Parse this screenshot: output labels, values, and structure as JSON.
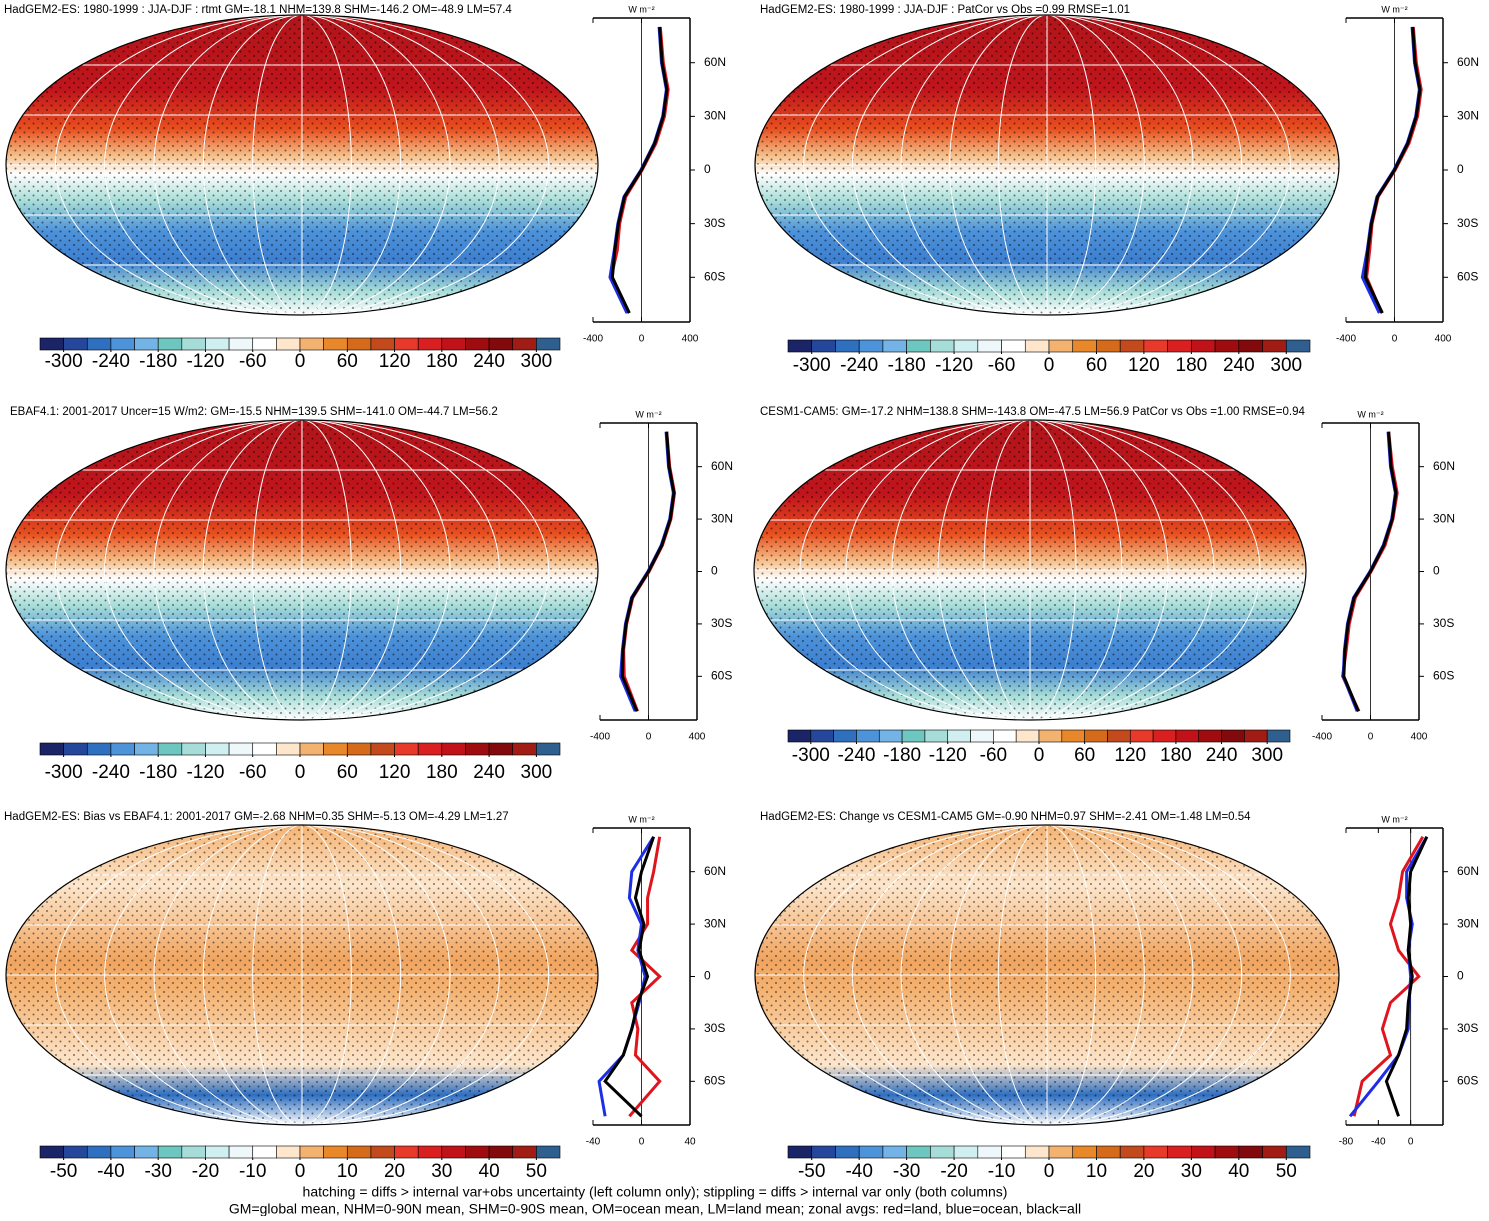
{
  "chart_data": [
    {
      "type": "map",
      "title": "HadGEM2-ES: 1980-1999 : JJA-DJF : rtmt GM=-18.1 NHM=139.8 SHM=-146.2 OM=-48.9 LM=57.4",
      "colorbar": {
        "lim": [
          -330,
          330
        ],
        "ticks": [
          -300,
          -240,
          -180,
          -120,
          -60,
          0,
          60,
          120,
          180,
          240,
          300
        ],
        "colors": [
          "#1b2466",
          "#24479b",
          "#2f6fc0",
          "#4d93d9",
          "#73b3e6",
          "#6ec6c0",
          "#a7ddd8",
          "#d0eff0",
          "#eef8fb",
          "#ffffff",
          "#fde6cc",
          "#f4b271",
          "#e8882a",
          "#d46a1a",
          "#c24a1c",
          "#e83a2a",
          "#d91f1f",
          "#c01218",
          "#9e0c10",
          "#820a0c",
          "#a01c14",
          "#2f5f8f"
        ]
      },
      "zonal": {
        "type": "line",
        "unit": "W m⁻²",
        "xlim": [
          -400,
          400
        ],
        "xticks": [
          -400,
          0,
          400
        ],
        "ylim": [
          -85,
          85
        ],
        "yticks": [
          {
            "value": 60,
            "label": "60N"
          },
          {
            "value": 30,
            "label": "30N"
          },
          0,
          {
            "value": -30,
            "label": "30S"
          },
          {
            "value": -60,
            "label": "60S"
          }
        ],
        "y": [
          -80,
          -60,
          -45,
          -30,
          -15,
          0,
          15,
          30,
          45,
          60,
          80
        ],
        "series": [
          {
            "color": "#e0141c",
            "values": [
              -110,
              -250,
              -200,
              -180,
              -130,
              5,
              120,
              190,
              220,
              180,
              155
            ]
          },
          {
            "color": "#1e2ee6",
            "values": [
              -120,
              -260,
              -225,
              -195,
              -145,
              -5,
              105,
              175,
              205,
              165,
              145
            ]
          },
          {
            "color": "#000000",
            "values": [
              -100,
              -240,
              -220,
              -190,
              -140,
              0,
              110,
              180,
              210,
              170,
              150
            ]
          }
        ]
      }
    },
    {
      "type": "map",
      "title": "HadGEM2-ES: 1980-1999 : JJA-DJF : PatCor vs Obs =0.99 RMSE=1.01",
      "colorbar": {
        "lim": [
          -330,
          330
        ],
        "ticks": [
          -300,
          -240,
          -180,
          -120,
          -60,
          0,
          60,
          120,
          180,
          240,
          300
        ],
        "colors": [
          "#1b2466",
          "#24479b",
          "#2f6fc0",
          "#4d93d9",
          "#73b3e6",
          "#6ec6c0",
          "#a7ddd8",
          "#d0eff0",
          "#eef8fb",
          "#ffffff",
          "#fde6cc",
          "#f4b271",
          "#e8882a",
          "#d46a1a",
          "#c24a1c",
          "#e83a2a",
          "#d91f1f",
          "#c01218",
          "#9e0c10",
          "#820a0c",
          "#a01c14",
          "#2f5f8f"
        ]
      },
      "zonal": {
        "type": "line",
        "unit": "W m⁻²",
        "xlim": [
          -400,
          400
        ],
        "xticks": [
          -400,
          0,
          400
        ],
        "ylim": [
          -85,
          85
        ],
        "yticks": [
          {
            "value": 60,
            "label": "60N"
          },
          {
            "value": 30,
            "label": "30N"
          },
          0,
          {
            "value": -30,
            "label": "30S"
          },
          {
            "value": -60,
            "label": "60S"
          }
        ],
        "y": [
          -80,
          -60,
          -45,
          -30,
          -15,
          0,
          15,
          30,
          45,
          60,
          80
        ],
        "series": [
          {
            "color": "#e0141c",
            "values": [
              -105,
              -230,
              -205,
              -185,
              -135,
              5,
              120,
              190,
              220,
              180,
              155
            ]
          },
          {
            "color": "#1e2ee6",
            "values": [
              -125,
              -265,
              -225,
              -195,
              -145,
              -5,
              105,
              175,
              205,
              165,
              145
            ]
          },
          {
            "color": "#000000",
            "values": [
              -100,
              -240,
              -220,
              -190,
              -140,
              0,
              110,
              180,
              210,
              170,
              150
            ]
          }
        ]
      }
    },
    {
      "type": "map",
      "title": "EBAF4.1: 2001-2017 Uncer=15 W/m2: GM=-15.5 NHM=139.5 SHM=-141.0 OM=-44.7 LM=56.2",
      "colorbar": {
        "lim": [
          -330,
          330
        ],
        "ticks": [
          -300,
          -240,
          -180,
          -120,
          -60,
          0,
          60,
          120,
          180,
          240,
          300
        ],
        "colors": [
          "#1b2466",
          "#24479b",
          "#2f6fc0",
          "#4d93d9",
          "#73b3e6",
          "#6ec6c0",
          "#a7ddd8",
          "#d0eff0",
          "#eef8fb",
          "#ffffff",
          "#fde6cc",
          "#f4b271",
          "#e8882a",
          "#d46a1a",
          "#c24a1c",
          "#e83a2a",
          "#d91f1f",
          "#c01218",
          "#9e0c10",
          "#820a0c",
          "#a01c14",
          "#2f5f8f"
        ]
      },
      "zonal": {
        "type": "line",
        "unit": "W m⁻²",
        "xlim": [
          -400,
          400
        ],
        "xticks": [
          -400,
          0,
          400
        ],
        "ylim": [
          -85,
          85
        ],
        "yticks": [
          {
            "value": 60,
            "label": "60N"
          },
          {
            "value": 30,
            "label": "30N"
          },
          0,
          {
            "value": -30,
            "label": "30S"
          },
          {
            "value": -60,
            "label": "60S"
          }
        ],
        "y": [
          -80,
          -60,
          -45,
          -30,
          -15,
          0,
          15,
          30,
          45,
          60,
          80
        ],
        "series": [
          {
            "color": "#e0141c",
            "values": [
              -90,
              -200,
              -205,
              -180,
              -130,
              5,
              115,
              185,
              215,
              175,
              150
            ]
          },
          {
            "color": "#1e2ee6",
            "values": [
              -110,
              -230,
              -215,
              -190,
              -140,
              -5,
              105,
              175,
              205,
              165,
              145
            ]
          },
          {
            "color": "#000000",
            "values": [
              -95,
              -215,
              -210,
              -185,
              -135,
              0,
              110,
              180,
              210,
              170,
              150
            ]
          }
        ]
      }
    },
    {
      "type": "map",
      "title": "CESM1-CAM5: GM=-17.2 NHM=138.8 SHM=-143.8 OM=-47.5 LM=56.9 PatCor vs Obs =1.00 RMSE=0.94",
      "colorbar": {
        "lim": [
          -330,
          330
        ],
        "ticks": [
          -300,
          -240,
          -180,
          -120,
          -60,
          0,
          60,
          120,
          180,
          240,
          300
        ],
        "colors": [
          "#1b2466",
          "#24479b",
          "#2f6fc0",
          "#4d93d9",
          "#73b3e6",
          "#6ec6c0",
          "#a7ddd8",
          "#d0eff0",
          "#eef8fb",
          "#ffffff",
          "#fde6cc",
          "#f4b271",
          "#e8882a",
          "#d46a1a",
          "#c24a1c",
          "#e83a2a",
          "#d91f1f",
          "#c01218",
          "#9e0c10",
          "#820a0c",
          "#a01c14",
          "#2f5f8f"
        ]
      },
      "zonal": {
        "type": "line",
        "unit": "W m⁻²",
        "xlim": [
          -400,
          400
        ],
        "xticks": [
          -400,
          0,
          400
        ],
        "ylim": [
          -85,
          85
        ],
        "yticks": [
          {
            "value": 60,
            "label": "60N"
          },
          {
            "value": 30,
            "label": "30N"
          },
          0,
          {
            "value": -30,
            "label": "30S"
          },
          {
            "value": -60,
            "label": "60S"
          }
        ],
        "y": [
          -80,
          -60,
          -45,
          -30,
          -15,
          0,
          15,
          30,
          45,
          60,
          80
        ],
        "series": [
          {
            "color": "#e0141c",
            "values": [
              -95,
              -230,
              -200,
              -175,
              -125,
              5,
              120,
              185,
              220,
              180,
              150
            ]
          },
          {
            "color": "#1e2ee6",
            "values": [
              -110,
              -225,
              -215,
              -190,
              -140,
              -5,
              105,
              175,
              205,
              165,
              145
            ]
          },
          {
            "color": "#000000",
            "values": [
              -100,
              -220,
              -210,
              -185,
              -135,
              0,
              110,
              180,
              210,
              170,
              150
            ]
          }
        ]
      }
    },
    {
      "type": "map",
      "title": "HadGEM2-ES: Bias vs EBAF4.1: 2001-2017 GM=-2.68 NHM=0.35 SHM=-5.13 OM=-4.29 LM=1.27",
      "colorbar": {
        "lim": [
          -55,
          55
        ],
        "ticks": [
          -50,
          -40,
          -30,
          -20,
          -10,
          0,
          10,
          20,
          30,
          40,
          50
        ],
        "colors": [
          "#1b2466",
          "#24479b",
          "#2f6fc0",
          "#4d93d9",
          "#73b3e6",
          "#6ec6c0",
          "#a7ddd8",
          "#d0eff0",
          "#eef8fb",
          "#ffffff",
          "#fde6cc",
          "#f4b271",
          "#e8882a",
          "#d46a1a",
          "#c24a1c",
          "#e83a2a",
          "#d91f1f",
          "#c01218",
          "#9e0c10",
          "#820a0c",
          "#a01c14",
          "#2f5f8f"
        ]
      },
      "zonal": {
        "type": "line",
        "unit": "W m⁻²",
        "xlim": [
          -40,
          40
        ],
        "xticks": [
          -40,
          0,
          40
        ],
        "ylim": [
          -85,
          85
        ],
        "yticks": [
          {
            "value": 60,
            "label": "60N"
          },
          {
            "value": 30,
            "label": "30N"
          },
          0,
          {
            "value": -30,
            "label": "30S"
          },
          {
            "value": -60,
            "label": "60S"
          }
        ],
        "y": [
          -80,
          -60,
          -45,
          -30,
          -15,
          0,
          15,
          30,
          45,
          60,
          80
        ],
        "series": [
          {
            "color": "#e0141c",
            "values": [
              -10,
              15,
              -5,
              -3,
              -8,
              15,
              -8,
              5,
              5,
              10,
              15
            ]
          },
          {
            "color": "#1e2ee6",
            "values": [
              -30,
              -35,
              -15,
              -8,
              -2,
              3,
              -3,
              0,
              -10,
              -8,
              10
            ]
          },
          {
            "color": "#000000",
            "values": [
              0,
              -30,
              -15,
              -8,
              -3,
              5,
              -2,
              2,
              -5,
              0,
              10
            ]
          }
        ]
      }
    },
    {
      "type": "map",
      "title": "HadGEM2-ES: Change vs CESM1-CAM5 GM=-0.90 NHM=0.97 SHM=-2.41 OM=-1.48 LM=0.54",
      "colorbar": {
        "lim": [
          -55,
          55
        ],
        "ticks": [
          -50,
          -40,
          -30,
          -20,
          -10,
          0,
          10,
          20,
          30,
          40,
          50
        ],
        "colors": [
          "#1b2466",
          "#24479b",
          "#2f6fc0",
          "#4d93d9",
          "#73b3e6",
          "#6ec6c0",
          "#a7ddd8",
          "#d0eff0",
          "#eef8fb",
          "#ffffff",
          "#fde6cc",
          "#f4b271",
          "#e8882a",
          "#d46a1a",
          "#c24a1c",
          "#e83a2a",
          "#d91f1f",
          "#c01218",
          "#9e0c10",
          "#820a0c",
          "#a01c14",
          "#2f5f8f"
        ]
      },
      "zonal": {
        "type": "line",
        "unit": "W m⁻²",
        "xlim": [
          -80,
          40
        ],
        "xticks": [
          -80,
          -40,
          0
        ],
        "ylim": [
          -85,
          85
        ],
        "yticks": [
          {
            "value": 60,
            "label": "60N"
          },
          {
            "value": 30,
            "label": "30N"
          },
          0,
          {
            "value": -30,
            "label": "30S"
          },
          {
            "value": -60,
            "label": "60S"
          }
        ],
        "y": [
          -80,
          -60,
          -45,
          -30,
          -15,
          0,
          15,
          30,
          45,
          60,
          80
        ],
        "series": [
          {
            "color": "#e0141c",
            "values": [
              -70,
              -60,
              -25,
              -35,
              -25,
              10,
              -15,
              -25,
              -15,
              -10,
              15
            ]
          },
          {
            "color": "#1e2ee6",
            "values": [
              -75,
              -40,
              -15,
              -3,
              -2,
              0,
              -3,
              2,
              -5,
              -5,
              20
            ]
          },
          {
            "color": "#000000",
            "values": [
              -15,
              -30,
              -15,
              -5,
              -3,
              2,
              -3,
              0,
              -3,
              0,
              20
            ]
          }
        ]
      }
    }
  ],
  "footnote": [
    "hatching = diffs > internal var+obs uncertainty (left column only); stippling = diffs > internal var only (both columns)",
    "GM=global mean, NHM=0-90N mean, SHM=0-90S mean, OM=ocean mean, LM=land mean; zonal avgs: red=land, blue=ocean, black=all"
  ]
}
